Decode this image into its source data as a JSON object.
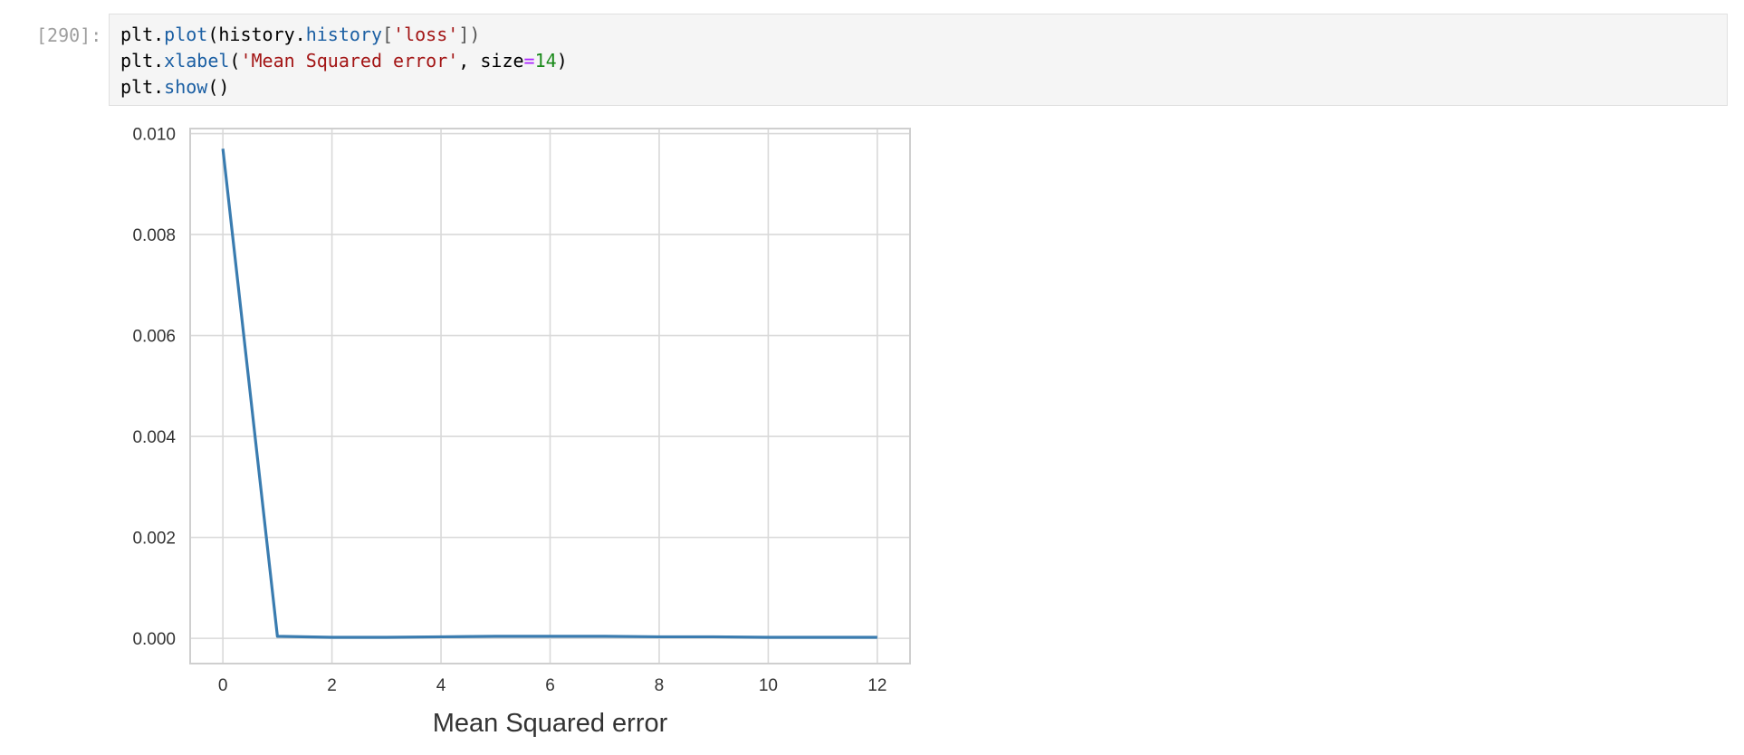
{
  "cell": {
    "prompt": "[290]:",
    "code": {
      "line1": {
        "a": "plt.",
        "b": "plot",
        "c": "(history.",
        "d": "history",
        "e": "[",
        "f": "'loss'",
        "g": "])"
      },
      "line2": {
        "a": "plt.",
        "b": "xlabel",
        "c": "(",
        "d": "'Mean Squared error'",
        "e": ", size",
        "f": "=",
        "g": "14",
        "h": ")"
      },
      "line3": {
        "a": "plt.",
        "b": "show",
        "c": "()"
      }
    }
  },
  "chart_data": {
    "type": "line",
    "title": "",
    "xlabel": "Mean Squared error",
    "ylabel": "",
    "xlim": [
      -0.6,
      12.6
    ],
    "ylim": [
      -0.0005,
      0.0101
    ],
    "xticks": [
      0,
      2,
      4,
      6,
      8,
      10,
      12
    ],
    "xtick_labels": [
      "0",
      "2",
      "4",
      "6",
      "8",
      "10",
      "12"
    ],
    "yticks": [
      0.0,
      0.002,
      0.004,
      0.006,
      0.008,
      0.01
    ],
    "ytick_labels": [
      "0.000",
      "0.002",
      "0.004",
      "0.006",
      "0.008",
      "0.010"
    ],
    "grid": true,
    "series": [
      {
        "x": [
          0,
          1,
          2,
          3,
          4,
          5,
          6,
          7,
          8,
          9,
          10,
          11,
          12
        ],
        "values": [
          0.0097,
          4e-05,
          2e-05,
          2e-05,
          3e-05,
          4e-05,
          4e-05,
          4e-05,
          3e-05,
          3e-05,
          2e-05,
          2e-05,
          2e-05
        ],
        "color": "#3a7cb0"
      }
    ]
  }
}
